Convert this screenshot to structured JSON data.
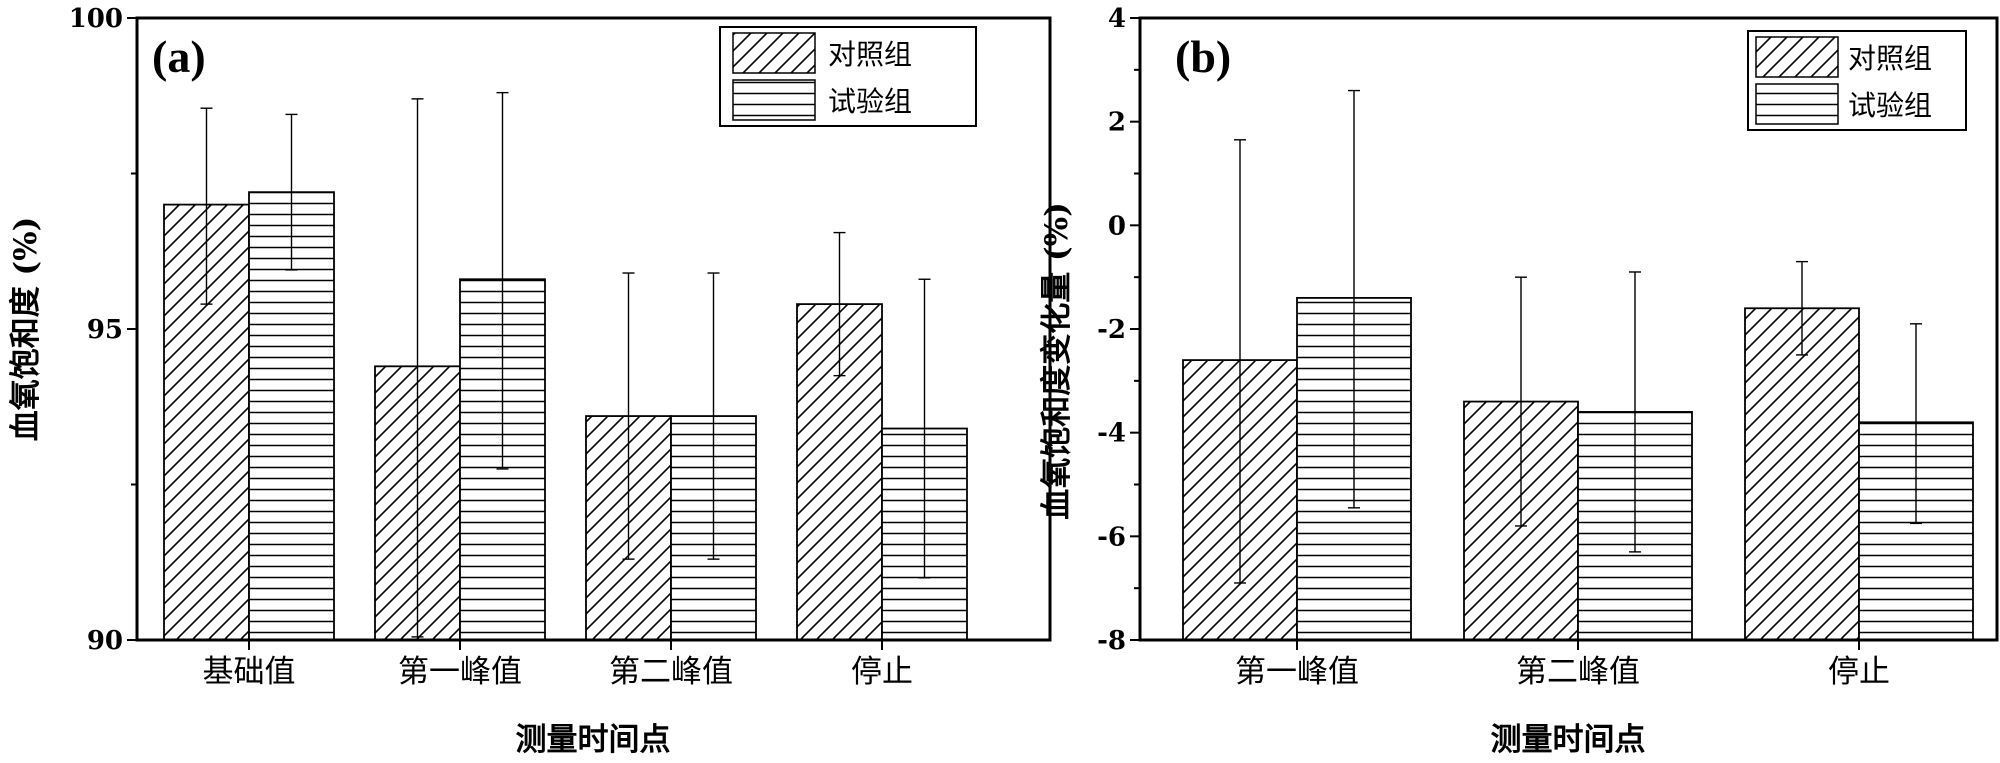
{
  "chart_data": [
    {
      "type": "bar",
      "panel_label": "(a)",
      "categories": [
        "基础值",
        "第一峰值",
        "第二峰值",
        "停止"
      ],
      "series": [
        {
          "name": "对照组",
          "pattern": "diagonal-hatch",
          "values": [
            97.0,
            94.4,
            93.6,
            95.4
          ],
          "error_low": [
            95.4,
            90.05,
            91.3,
            94.25
          ],
          "error_high": [
            98.55,
            98.7,
            95.9,
            96.55
          ]
        },
        {
          "name": "试验组",
          "pattern": "horizontal-hatch",
          "values": [
            97.2,
            95.8,
            93.6,
            93.4
          ],
          "error_low": [
            95.95,
            92.75,
            91.3,
            91.0
          ],
          "error_high": [
            98.45,
            98.8,
            95.9,
            95.8
          ]
        }
      ],
      "xlabel": "测量时间点",
      "ylabel": "血氧饱和度 (%)",
      "ylim": [
        90,
        100
      ],
      "yticks": [
        90,
        95,
        100
      ],
      "legend_position": "top-right",
      "grid": false
    },
    {
      "type": "bar",
      "panel_label": "(b)",
      "categories": [
        "第一峰值",
        "第二峰值",
        "停止"
      ],
      "series": [
        {
          "name": "对照组",
          "pattern": "diagonal-hatch",
          "values": [
            -2.6,
            -3.4,
            -1.6
          ],
          "error_low": [
            -6.9,
            -5.8,
            -2.5
          ],
          "error_high": [
            1.65,
            -1.0,
            -0.7
          ]
        },
        {
          "name": "试验组",
          "pattern": "horizontal-hatch",
          "values": [
            -1.4,
            -3.6,
            -3.8
          ],
          "error_low": [
            -5.45,
            -6.3,
            -5.75
          ],
          "error_high": [
            2.6,
            -0.9,
            -1.9
          ]
        }
      ],
      "xlabel": "测量时间点",
      "ylabel": "血氧饱和度变化量 (%)",
      "ylim": [
        -8,
        4
      ],
      "yticks": [
        -8,
        -6,
        -4,
        -2,
        0,
        2,
        4
      ],
      "legend_position": "top-right",
      "grid": false
    }
  ]
}
